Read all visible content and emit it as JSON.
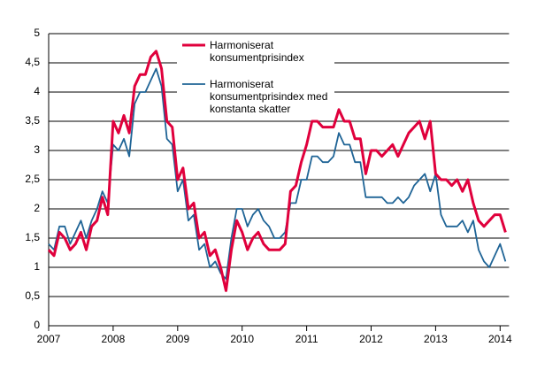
{
  "chart_data": {
    "type": "line",
    "categories": [
      "2007",
      null,
      null,
      null,
      null,
      null,
      null,
      null,
      null,
      null,
      null,
      null,
      "2008",
      null,
      null,
      null,
      null,
      null,
      null,
      null,
      null,
      null,
      null,
      null,
      "2009",
      null,
      null,
      null,
      null,
      null,
      null,
      null,
      null,
      null,
      null,
      null,
      "2010",
      null,
      null,
      null,
      null,
      null,
      null,
      null,
      null,
      null,
      null,
      null,
      "2011",
      null,
      null,
      null,
      null,
      null,
      null,
      null,
      null,
      null,
      null,
      null,
      "2012",
      null,
      null,
      null,
      null,
      null,
      null,
      null,
      null,
      null,
      null,
      null,
      "2013",
      null,
      null,
      null,
      null,
      null,
      null,
      null,
      null,
      null,
      null,
      null,
      "2014",
      null
    ],
    "series": [
      {
        "name": "Harmoniserat konsumentprisindex",
        "color": "#e0003c",
        "values": [
          1.3,
          1.2,
          1.6,
          1.5,
          1.3,
          1.4,
          1.6,
          1.3,
          1.7,
          1.8,
          2.2,
          1.9,
          3.5,
          3.3,
          3.6,
          3.3,
          4.1,
          4.3,
          4.3,
          4.6,
          4.7,
          4.4,
          3.5,
          3.4,
          2.5,
          2.7,
          2.0,
          2.1,
          1.5,
          1.6,
          1.2,
          1.3,
          1.0,
          0.6,
          1.3,
          1.8,
          1.6,
          1.3,
          1.5,
          1.6,
          1.4,
          1.3,
          1.3,
          1.3,
          1.4,
          2.3,
          2.4,
          2.8,
          3.1,
          3.5,
          3.5,
          3.4,
          3.4,
          3.4,
          3.7,
          3.5,
          3.5,
          3.2,
          3.2,
          2.6,
          3.0,
          3.0,
          2.9,
          3.0,
          3.1,
          2.9,
          3.1,
          3.3,
          3.4,
          3.5,
          3.2,
          3.5,
          2.6,
          2.5,
          2.5,
          2.4,
          2.5,
          2.3,
          2.5,
          2.1,
          1.8,
          1.7,
          1.8,
          1.9,
          1.9,
          1.6
        ]
      },
      {
        "name": "Harmoniserat konsumentprisindex med konstanta skatter",
        "color": "#1f6496",
        "values": [
          1.4,
          1.3,
          1.7,
          1.7,
          1.4,
          1.6,
          1.8,
          1.5,
          1.8,
          2.0,
          2.3,
          2.1,
          3.1,
          3.0,
          3.2,
          2.9,
          3.8,
          4.0,
          4.0,
          4.2,
          4.4,
          4.1,
          3.2,
          3.1,
          2.3,
          2.5,
          1.8,
          1.9,
          1.3,
          1.4,
          1.0,
          1.1,
          0.9,
          0.8,
          1.5,
          2.0,
          2.0,
          1.7,
          1.9,
          2.0,
          1.8,
          1.7,
          1.5,
          1.5,
          1.6,
          2.1,
          2.1,
          2.5,
          2.5,
          2.9,
          2.9,
          2.8,
          2.8,
          2.9,
          3.3,
          3.1,
          3.1,
          2.8,
          2.8,
          2.2,
          2.2,
          2.2,
          2.2,
          2.1,
          2.1,
          2.2,
          2.1,
          2.2,
          2.4,
          2.5,
          2.6,
          2.3,
          2.6,
          1.9,
          1.7,
          1.7,
          1.7,
          1.8,
          1.6,
          1.8,
          1.3,
          1.1,
          1.0,
          1.2,
          1.4,
          1.1
        ]
      }
    ],
    "ylim": [
      0,
      5
    ],
    "yticks": [
      0,
      {
        "value": 0.5,
        "label": "0,5"
      },
      1,
      {
        "value": 1.5,
        "label": "1,5"
      },
      2,
      {
        "value": 2.5,
        "label": "2,5"
      },
      3,
      {
        "value": 3.5,
        "label": "3,5"
      },
      4,
      {
        "value": 4.5,
        "label": "4,5"
      },
      5
    ],
    "grid": true
  }
}
